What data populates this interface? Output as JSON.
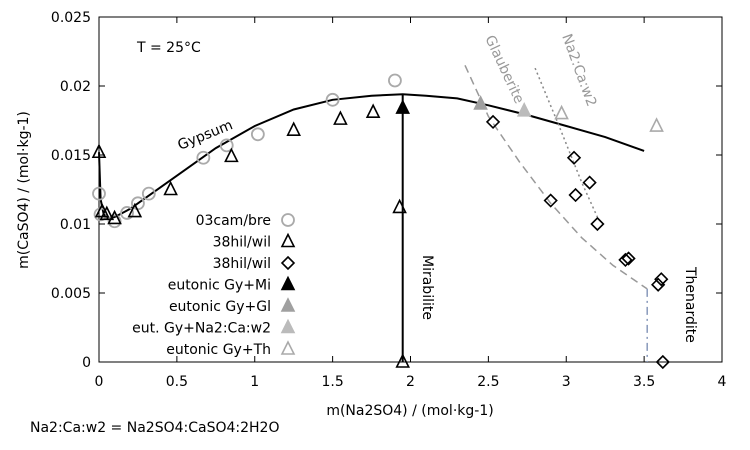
{
  "chart_data": {
    "type": "scatter",
    "xlabel": "m(Na2SO4) / (mol·kg-1)",
    "ylabel": "m(CaSO4) / (mol·kg-1)",
    "xlim": [
      0,
      4
    ],
    "ylim": [
      0,
      0.025
    ],
    "xticks": [
      0,
      0.5,
      1,
      1.5,
      2,
      2.5,
      3,
      3.5,
      4
    ],
    "yticks": [
      0,
      0.005,
      0.01,
      0.015,
      0.02,
      0.025
    ],
    "xtick_labels": [
      "0",
      "0.5",
      "1",
      "1.5",
      "2",
      "2.5",
      "3",
      "3.5",
      "4"
    ],
    "ytick_labels": [
      "0",
      "0.005",
      "0.01",
      "0.015",
      "0.02",
      "0.025"
    ],
    "grid": false,
    "legend_position": "left-center",
    "annotation_temperature": "T = 25°C",
    "curve_labels": {
      "gypsum": "Gypsum",
      "mirabilite": "Mirabilite",
      "glauberite": "Glauberite",
      "na2caw2": "Na2:Ca:w2",
      "thenardite": "Thenardite"
    },
    "series": [
      {
        "name": "03cam/bre",
        "marker": "circle-open",
        "color": "#aaaaaa",
        "x": [
          0,
          0.01,
          0.1,
          0.18,
          0.25,
          0.32,
          0.67,
          0.82,
          1.02,
          1.5,
          1.9
        ],
        "y": [
          0.0122,
          0.0107,
          0.0102,
          0.0108,
          0.0115,
          0.0122,
          0.0148,
          0.0157,
          0.0165,
          0.019,
          0.0204
        ]
      },
      {
        "name": "38hil/wil",
        "marker": "triangle-open",
        "color": "#000000",
        "x": [
          0,
          0.02,
          0.05,
          0.1,
          0.23,
          0.46,
          0.85,
          1.25,
          1.55,
          1.76,
          1.93,
          1.95
        ],
        "y": [
          0.0152,
          0.0109,
          0.0107,
          0.0104,
          0.0109,
          0.0125,
          0.0149,
          0.0168,
          0.0176,
          0.0181,
          0.0112,
          0
        ]
      },
      {
        "name": "38hil/wil",
        "marker": "diamond-open",
        "color": "#000000",
        "x": [
          2.53,
          2.9,
          3.05,
          3.06,
          3.15,
          3.2,
          3.38,
          3.4,
          3.59,
          3.61,
          3.62
        ],
        "y": [
          0.0174,
          0.0117,
          0.0148,
          0.0121,
          0.013,
          0.01,
          0.0074,
          0.0075,
          0.0056,
          0.006,
          0
        ]
      },
      {
        "name": "eutonic Gy+Mi",
        "marker": "triangle-filled",
        "color": "#000000",
        "x": [
          1.95
        ],
        "y": [
          0.0184
        ]
      },
      {
        "name": "eutonic Gy+Gl",
        "marker": "triangle-filled",
        "color": "#a0a0a0",
        "x": [
          2.45
        ],
        "y": [
          0.0187
        ]
      },
      {
        "name": "eut. Gy+Na2:Ca:w2",
        "marker": "triangle-filled",
        "color": "#bbbbbb",
        "x": [
          2.73
        ],
        "y": [
          0.0182
        ]
      },
      {
        "name": "eutonic Gy+Th",
        "marker": "triangle-open",
        "color": "#aaaaaa",
        "x": [
          2.97,
          3.58
        ],
        "y": [
          0.018,
          0.0171
        ]
      }
    ],
    "curves": [
      {
        "name": "Gypsum",
        "style": "solid",
        "color": "#000000",
        "x": [
          0,
          0.01,
          0.03,
          0.06,
          0.1,
          0.2,
          0.3,
          0.5,
          0.75,
          1.0,
          1.25,
          1.5,
          1.75,
          1.95,
          2.1,
          2.3,
          2.5,
          2.75,
          3.0,
          3.25,
          3.5
        ],
        "y": [
          0.0152,
          0.0118,
          0.0107,
          0.0104,
          0.0105,
          0.0111,
          0.0119,
          0.0135,
          0.0155,
          0.0171,
          0.0183,
          0.019,
          0.0193,
          0.0194,
          0.0193,
          0.0191,
          0.0186,
          0.0179,
          0.0171,
          0.0163,
          0.0153
        ]
      },
      {
        "name": "Mirabilite",
        "style": "solid",
        "color": "#000000",
        "x": [
          1.95,
          1.95
        ],
        "y": [
          0.0194,
          0
        ]
      },
      {
        "name": "Glauberite",
        "style": "dashed",
        "color": "#999999",
        "x": [
          2.35,
          2.5,
          2.7,
          2.9,
          3.1,
          3.3,
          3.52
        ],
        "y": [
          0.0215,
          0.0178,
          0.0145,
          0.0115,
          0.009,
          0.007,
          0.0053
        ]
      },
      {
        "name": "Na2:Ca:w2",
        "style": "dotted",
        "color": "#888888",
        "x": [
          2.8,
          2.95,
          3.1,
          3.2
        ],
        "y": [
          0.0213,
          0.0172,
          0.013,
          0.0105
        ]
      },
      {
        "name": "Thenardite",
        "style": "dashdot",
        "color": "#8899bb",
        "x": [
          3.52,
          3.52
        ],
        "y": [
          0.0053,
          0
        ]
      }
    ]
  },
  "footnote": "Na2:Ca:w2 = Na2SO4:CaSO4:2H2O"
}
